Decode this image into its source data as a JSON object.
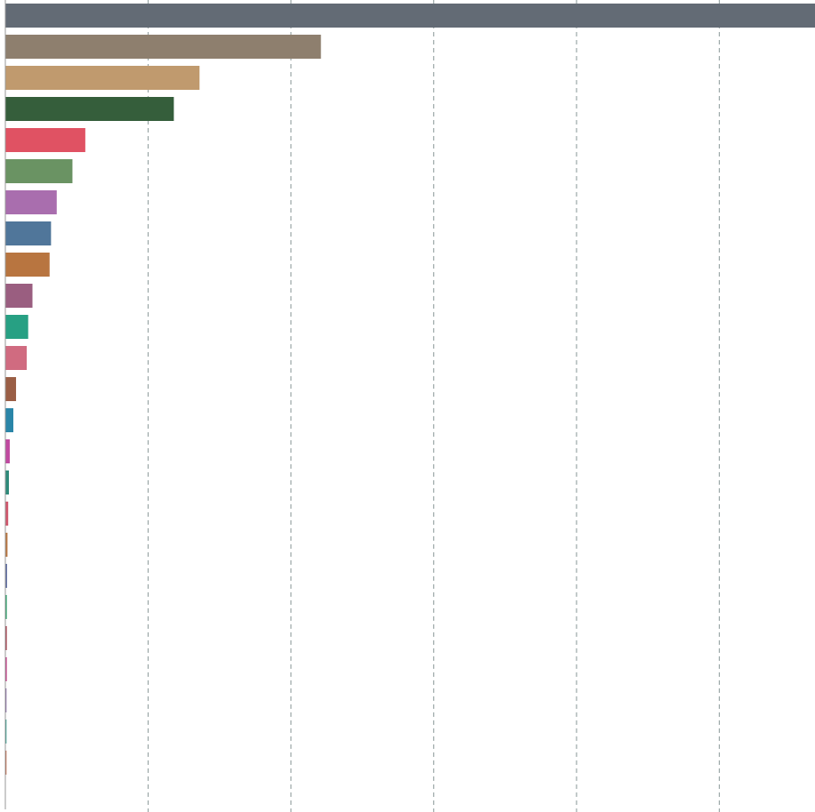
{
  "chart_data": {
    "type": "bar",
    "orientation": "horizontal",
    "values": [
      5.67,
      2.21,
      1.36,
      1.18,
      0.56,
      0.47,
      0.36,
      0.32,
      0.31,
      0.19,
      0.16,
      0.15,
      0.075,
      0.056,
      0.031,
      0.025,
      0.02,
      0.015,
      0.012,
      0.01,
      0.01,
      0.01,
      0.008,
      0.008,
      0.008
    ],
    "colors": [
      "#636b75",
      "#8e7f6e",
      "#c09a6e",
      "#355e3b",
      "#e05263",
      "#6a9363",
      "#a96eae",
      "#50769a",
      "#b87540",
      "#9a5e80",
      "#27a083",
      "#d06b80",
      "#9a5e45",
      "#2a85a8",
      "#c04aa0",
      "#2e8a7a",
      "#d0566c",
      "#b87540",
      "#5a6aa0",
      "#1a9a60",
      "#a03040",
      "#c03080",
      "#8060a0",
      "#2a9a8a",
      "#c06040"
    ],
    "xlim": [
      0,
      5.67
    ],
    "xticks": [
      0,
      1,
      2,
      3,
      4,
      5
    ],
    "grid": true
  }
}
